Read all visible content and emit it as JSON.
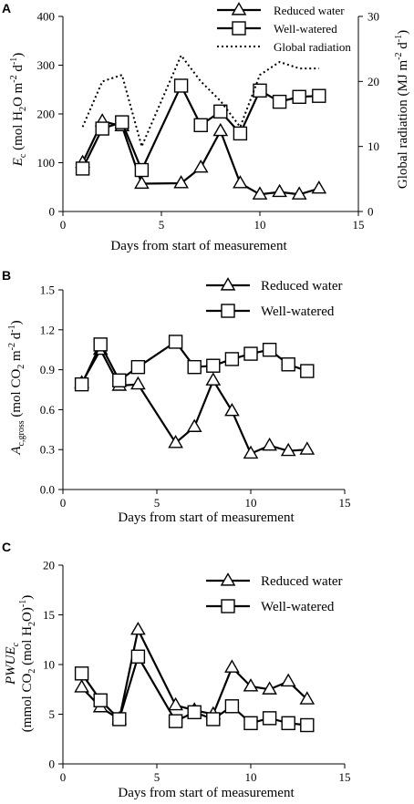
{
  "panels": [
    {
      "letter": "A",
      "xlabel": "Days from start of  measurement",
      "ylabel_main": "E",
      "ylabel_sub": "c",
      "ylabel_rest": " (mol H",
      "ylabel_rest2": "O m",
      "ylabel_rest3": " d",
      "y2label": "Global radiation (MJ m",
      "y2label_end": ")",
      "legend": [
        "Reduced water",
        "Well-watered",
        "Global radiation"
      ]
    },
    {
      "letter": "B",
      "xlabel": "Days from start of measurement",
      "legend": [
        "Reduced water",
        "Well-watered"
      ]
    },
    {
      "letter": "C",
      "xlabel": "Days from start of measurement",
      "legend": [
        "Reduced water",
        "Well-watered"
      ]
    }
  ],
  "chart_data": [
    {
      "type": "line",
      "xlabel": "Days from start of  measurement",
      "ylabel": "Ec (mol H2O m-2 d-1)",
      "y2label": "Global radiation (MJ m-2 d-1)",
      "xlim": [
        0,
        15
      ],
      "ylim": [
        0,
        400
      ],
      "y2lim": [
        0,
        30
      ],
      "xticks": [
        0,
        5,
        10,
        15
      ],
      "yticks": [
        0,
        100,
        200,
        300,
        400
      ],
      "y2ticks": [
        0,
        10,
        20,
        30
      ],
      "legend_position": "top-right",
      "series": [
        {
          "name": "Reduced water",
          "marker": "triangle",
          "axis": "left",
          "x": [
            1,
            2,
            3,
            4,
            6,
            7,
            8,
            9,
            10,
            11,
            12,
            13
          ],
          "y": [
            100,
            185,
            175,
            57,
            58,
            90,
            165,
            58,
            35,
            40,
            35,
            47
          ]
        },
        {
          "name": "Well-watered",
          "marker": "square",
          "axis": "left",
          "x": [
            1,
            2,
            3,
            4,
            6,
            7,
            8,
            9,
            10,
            11,
            12,
            13
          ],
          "y": [
            88,
            170,
            183,
            85,
            258,
            177,
            205,
            160,
            248,
            225,
            235,
            237
          ]
        },
        {
          "name": "Global radiation",
          "marker": "none",
          "style": "dotted",
          "axis": "right",
          "x": [
            1,
            2,
            3,
            4,
            6,
            7,
            8,
            9,
            10,
            11,
            12,
            13
          ],
          "y": [
            13,
            20,
            21,
            10,
            24,
            20,
            17,
            13,
            21,
            23,
            22,
            22
          ]
        }
      ]
    },
    {
      "type": "line",
      "xlabel": "Days from start of measurement",
      "ylabel": "Ac,gross (mol CO2 m-2 d-1)",
      "xlim": [
        0,
        15
      ],
      "ylim": [
        0,
        1.5
      ],
      "xticks": [
        0,
        5,
        10,
        15
      ],
      "yticks": [
        0.0,
        0.3,
        0.6,
        0.9,
        1.2,
        1.5
      ],
      "legend_position": "top-right",
      "series": [
        {
          "name": "Reduced water",
          "marker": "triangle",
          "x": [
            1,
            2,
            3,
            4,
            6,
            7,
            8,
            9,
            10,
            11,
            12,
            13
          ],
          "y": [
            0.8,
            1.05,
            0.78,
            0.79,
            0.35,
            0.47,
            0.82,
            0.59,
            0.27,
            0.33,
            0.29,
            0.3
          ]
        },
        {
          "name": "Well-watered",
          "marker": "square",
          "x": [
            1,
            2,
            3,
            4,
            6,
            7,
            8,
            9,
            10,
            11,
            12,
            13
          ],
          "y": [
            0.79,
            1.09,
            0.82,
            0.92,
            1.11,
            0.92,
            0.93,
            0.98,
            1.02,
            1.05,
            0.94,
            0.89
          ]
        }
      ]
    },
    {
      "type": "line",
      "xlabel": "Days from start of measurement",
      "ylabel": "PWUEc (mmol CO2 (mol H2O)-1)",
      "xlim": [
        0,
        15
      ],
      "ylim": [
        0,
        20
      ],
      "xticks": [
        0,
        5,
        10,
        15
      ],
      "yticks": [
        0,
        5,
        10,
        15,
        20
      ],
      "legend_position": "top-right",
      "series": [
        {
          "name": "Reduced water",
          "marker": "triangle",
          "x": [
            1,
            2,
            3,
            4,
            6,
            7,
            8,
            9,
            10,
            11,
            12,
            13
          ],
          "y": [
            7.7,
            5.7,
            4.5,
            13.5,
            5.9,
            5.4,
            5.0,
            9.7,
            7.8,
            7.5,
            8.3,
            6.5
          ]
        },
        {
          "name": "Well-watered",
          "marker": "square",
          "x": [
            1,
            2,
            3,
            4,
            6,
            7,
            8,
            9,
            10,
            11,
            12,
            13
          ],
          "y": [
            9.1,
            6.4,
            4.5,
            10.8,
            4.3,
            5.2,
            4.5,
            5.8,
            4.1,
            4.6,
            4.1,
            3.9
          ]
        }
      ]
    }
  ]
}
